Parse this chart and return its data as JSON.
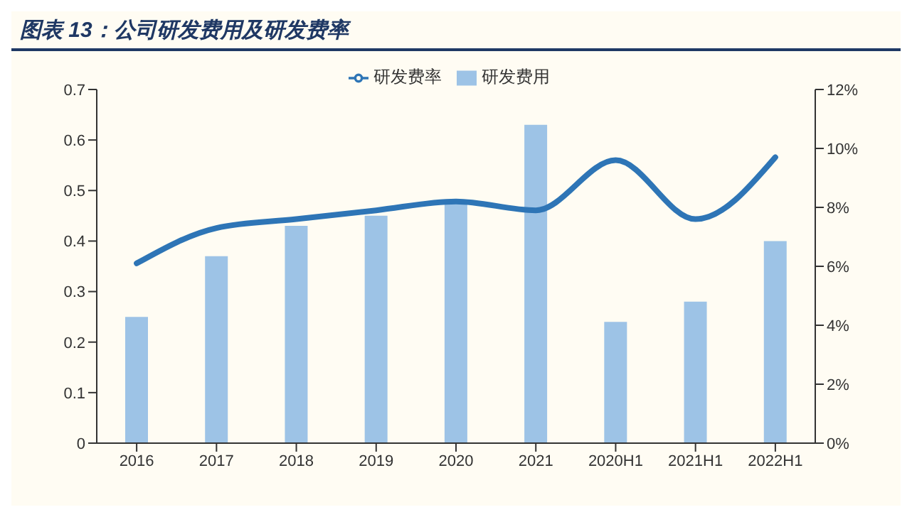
{
  "chart_data": {
    "type": "bar",
    "title": "图表 13：公司研发费用及研发费率",
    "categories": [
      "2016",
      "2017",
      "2018",
      "2019",
      "2020",
      "2021",
      "2020H1",
      "2021H1",
      "2022H1"
    ],
    "series": [
      {
        "name": "研发费用",
        "color": "#9dc3e6",
        "values": [
          0.25,
          0.37,
          0.43,
          0.45,
          0.48,
          0.63,
          0.24,
          0.28,
          0.4
        ]
      },
      {
        "name": "研发费率",
        "type": "line",
        "axis": "y2",
        "color": "#2e75b6",
        "values": [
          6.1,
          7.3,
          7.6,
          7.9,
          8.2,
          7.9,
          9.6,
          7.6,
          9.7
        ]
      }
    ],
    "ylim": [
      0,
      0.7
    ],
    "yticks": [
      0,
      0.1,
      0.2,
      0.3,
      0.4,
      0.5,
      0.6,
      0.7
    ],
    "y2lim": [
      0,
      12
    ],
    "y2ticks": [
      {
        "value": 0,
        "label": "0%"
      },
      {
        "value": 2,
        "label": "2%"
      },
      {
        "value": 4,
        "label": "4%"
      },
      {
        "value": 6,
        "label": "6%"
      },
      {
        "value": 8,
        "label": "8%"
      },
      {
        "value": 10,
        "label": "10%"
      },
      {
        "value": 12,
        "label": "12%"
      }
    ],
    "legend": "top",
    "grid": false,
    "marker": "none",
    "line_style": "solid"
  }
}
